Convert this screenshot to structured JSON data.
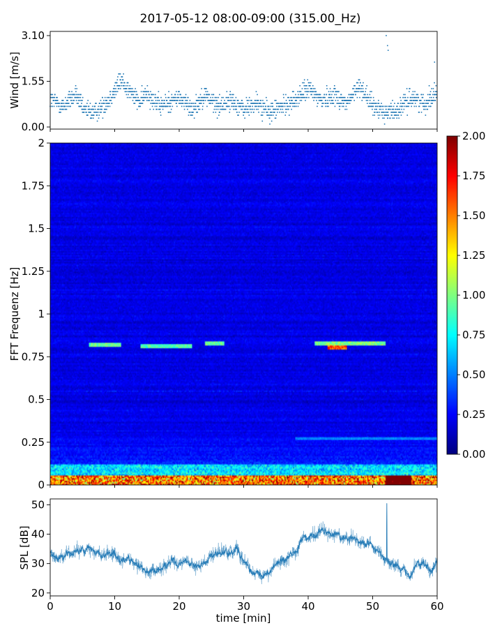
{
  "title": "2017-05-12 08:00-09:00 (315.00_Hz)",
  "chart_data": [
    {
      "type": "scatter",
      "ylabel": "Wind [m/s]",
      "xlabel": "",
      "xlim": [
        0,
        60
      ],
      "ylim": [
        0,
        3.1
      ],
      "yticks": [
        "0.00",
        "1.55",
        "3.10"
      ],
      "marker_color": "#1f77b4",
      "wind_profile": {
        "t": [
          0,
          2,
          4,
          5,
          7,
          9,
          11,
          12,
          14,
          15,
          17,
          20,
          22,
          24,
          26,
          28,
          30,
          32,
          34,
          36,
          38,
          40,
          42,
          44,
          46,
          48,
          50,
          52,
          54,
          56,
          58,
          60
        ],
        "base": [
          0.95,
          0.7,
          1.1,
          0.6,
          0.5,
          0.9,
          1.6,
          1.3,
          0.8,
          1.2,
          0.7,
          1.0,
          0.6,
          1.1,
          0.7,
          0.9,
          0.6,
          0.8,
          0.5,
          0.7,
          0.9,
          1.3,
          0.9,
          1.1,
          0.8,
          1.4,
          0.7,
          0.5,
          0.6,
          1.0,
          0.8,
          1.2
        ]
      }
    },
    {
      "type": "heatmap",
      "ylabel": "FFT Frequenz [Hz]",
      "xlim": [
        0,
        60
      ],
      "ylim": [
        0,
        2
      ],
      "yticks": [
        "0",
        "0.25",
        "0.5",
        "0.75",
        "1",
        "1.25",
        "1.5",
        "1.75",
        "2"
      ],
      "colormap": "jet",
      "colorbar": {
        "range": [
          0,
          2
        ],
        "ticks": [
          "0.00",
          "0.25",
          "0.50",
          "0.75",
          "1.00",
          "1.25",
          "1.50",
          "1.75",
          "2.00"
        ]
      },
      "tonal_bands": [
        {
          "freq": 0.82,
          "t_start": 6,
          "t_end": 11,
          "level": 0.95
        },
        {
          "freq": 0.81,
          "t_start": 14,
          "t_end": 22,
          "level": 0.9
        },
        {
          "freq": 0.83,
          "t_start": 24,
          "t_end": 27,
          "level": 0.95
        },
        {
          "freq": 0.83,
          "t_start": 41,
          "t_end": 52,
          "level": 1.0
        },
        {
          "freq": 0.805,
          "t_start": 43,
          "t_end": 46,
          "level": 1.6
        }
      ]
    },
    {
      "type": "line",
      "ylabel": "SPL [dB]",
      "xlabel": "time [min]",
      "xlim": [
        0,
        60
      ],
      "ylim": [
        19,
        52
      ],
      "yticks": [
        20,
        30,
        40,
        50
      ],
      "xticks": [
        0,
        10,
        20,
        30,
        40,
        50,
        60
      ],
      "line_color": "#1f77b4",
      "spl_profile": {
        "t": [
          0,
          1,
          3,
          5,
          7,
          9,
          11,
          13,
          15,
          17,
          19,
          21,
          23,
          25,
          27,
          29,
          31,
          33,
          35,
          37,
          38,
          39,
          41,
          43,
          45,
          47,
          49,
          51,
          53,
          55,
          56,
          57,
          59,
          60
        ],
        "spl": [
          34,
          32,
          33,
          35,
          34,
          33,
          32,
          31,
          27,
          28,
          30,
          31,
          29,
          32,
          33,
          34,
          27,
          26,
          30,
          31,
          33,
          38,
          40,
          41,
          39,
          38,
          37,
          34,
          30,
          28,
          25,
          31,
          27,
          30
        ]
      },
      "spike": {
        "t": 52.2,
        "value": 50.5
      }
    }
  ]
}
